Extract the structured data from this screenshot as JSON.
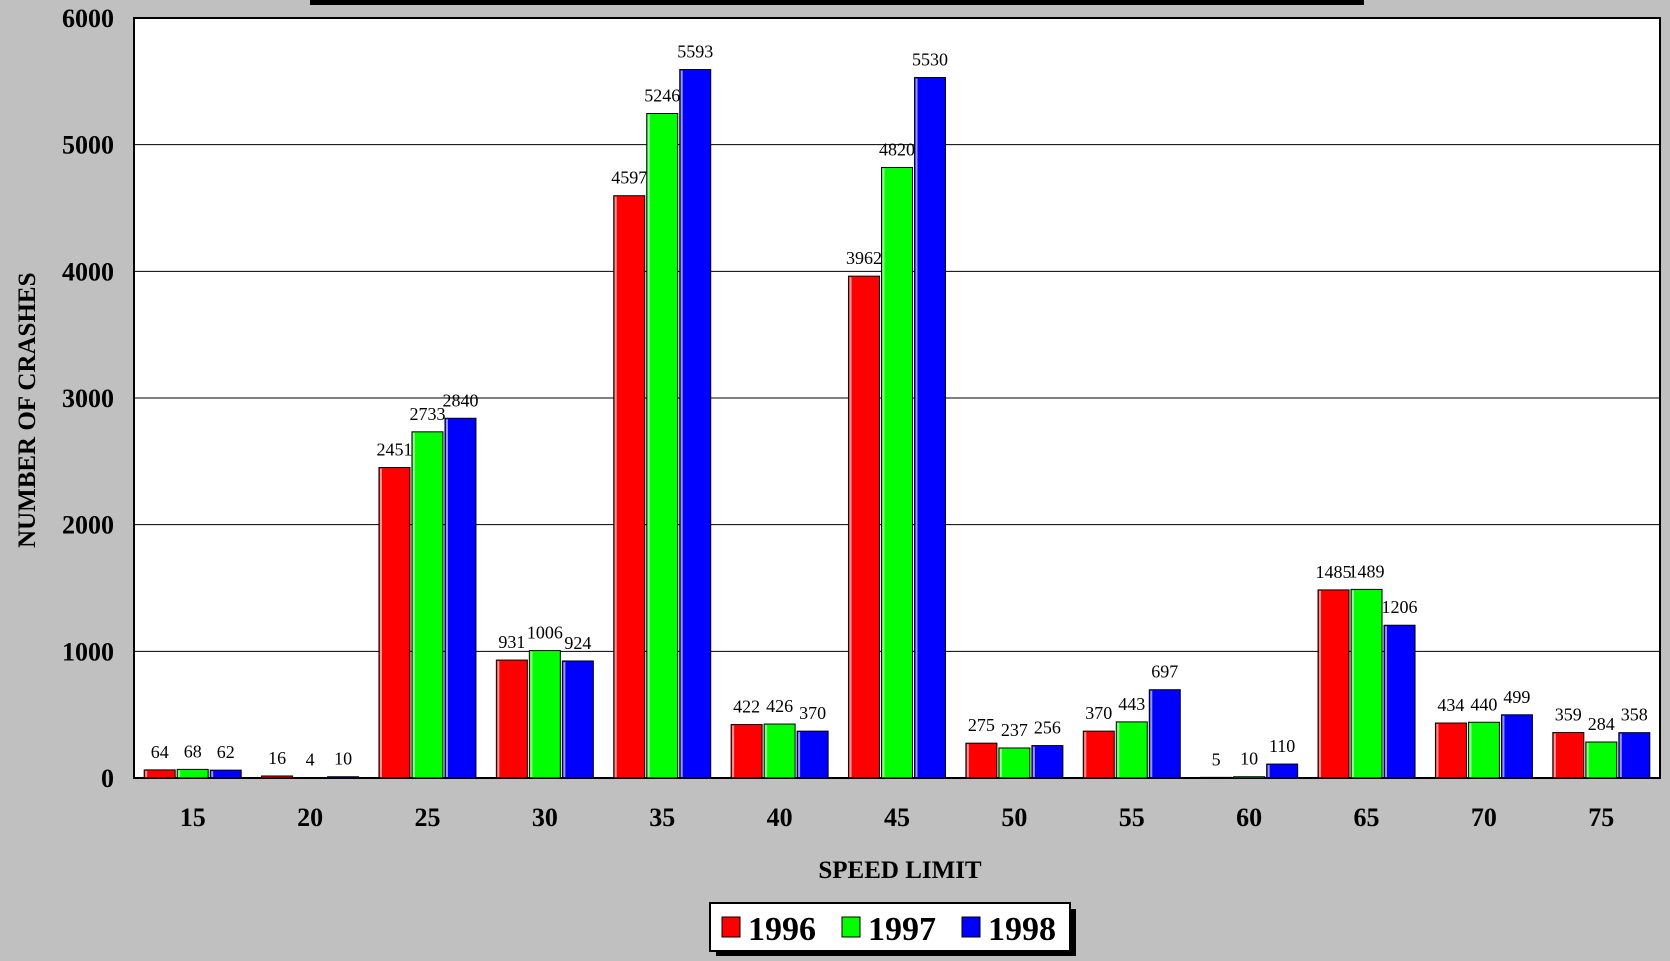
{
  "chart_data": {
    "type": "bar",
    "title": "",
    "xlabel": "SPEED LIMIT",
    "ylabel": "NUMBER OF CRASHES",
    "ylim": [
      0,
      6000
    ],
    "yticks": [
      0,
      1000,
      2000,
      3000,
      4000,
      5000,
      6000
    ],
    "grid": true,
    "legend_position": "bottom-center",
    "categories": [
      "15",
      "20",
      "25",
      "30",
      "35",
      "40",
      "45",
      "50",
      "55",
      "60",
      "65",
      "70",
      "75"
    ],
    "series": [
      {
        "name": "1996",
        "color": "#ff0000",
        "values": [
          64,
          16,
          2451,
          931,
          4597,
          422,
          3962,
          275,
          370,
          5,
          1485,
          434,
          359
        ]
      },
      {
        "name": "1997",
        "color": "#00ff00",
        "values": [
          68,
          4,
          2733,
          1006,
          5246,
          426,
          4820,
          237,
          443,
          10,
          1489,
          440,
          284
        ]
      },
      {
        "name": "1998",
        "color": "#0000ff",
        "values": [
          62,
          10,
          2840,
          924,
          5593,
          370,
          5530,
          256,
          697,
          110,
          1206,
          499,
          358
        ]
      }
    ]
  }
}
